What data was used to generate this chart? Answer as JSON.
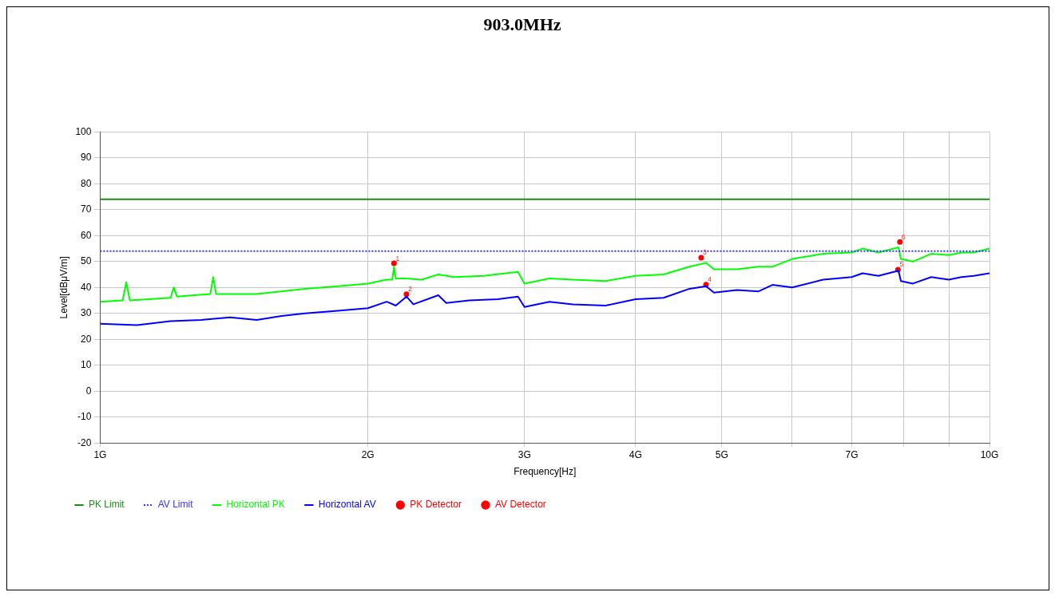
{
  "chart_data": {
    "type": "line",
    "title": "903.0MHz",
    "xlabel": "Frequency[Hz]",
    "ylabel": "Level[dBμV/m]",
    "log": "x",
    "grid": true,
    "legend": "bottom",
    "xlim": [
      1,
      10
    ],
    "xticks": [
      {
        "value": 1,
        "label": "1G"
      },
      {
        "value": 2,
        "label": "2G"
      },
      {
        "value": 3,
        "label": "3G"
      },
      {
        "value": 4,
        "label": "4G"
      },
      {
        "value": 5,
        "label": "5G"
      },
      {
        "value": 6,
        "label": null
      },
      {
        "value": 7,
        "label": "7G"
      },
      {
        "value": 8,
        "label": null
      },
      {
        "value": 9,
        "label": null
      },
      {
        "value": 10,
        "label": "10G"
      }
    ],
    "ylim": [
      -20,
      100
    ],
    "yticks": [
      -20,
      -10,
      0,
      10,
      20,
      30,
      40,
      50,
      60,
      70,
      80,
      90,
      100
    ],
    "annotations": [
      {
        "text": "1",
        "x": 2.14,
        "y": 49.3
      },
      {
        "text": "2",
        "x": 2.21,
        "y": 37.4
      },
      {
        "text": "3",
        "x": 4.74,
        "y": 51.5
      },
      {
        "text": "4",
        "x": 4.8,
        "y": 41.1
      },
      {
        "text": "5",
        "x": 7.89,
        "y": 46.9
      },
      {
        "text": "6",
        "x": 7.93,
        "y": 57.6
      }
    ],
    "series": [
      {
        "name": "PK Limit",
        "color": "#1a8c1a",
        "line_style": "solid",
        "marker": "none",
        "x": [
          1,
          10
        ],
        "values": [
          74,
          74
        ]
      },
      {
        "name": "AV Limit",
        "color": "#3333ff",
        "line_style": "dotted",
        "marker": "none",
        "x": [
          1,
          10
        ],
        "values": [
          54,
          54
        ]
      },
      {
        "name": "Horizontal PK",
        "color": "#00ff00",
        "line_style": "solid",
        "marker": "none",
        "x": [
          1.0,
          1.06,
          1.07,
          1.08,
          1.2,
          1.21,
          1.22,
          1.33,
          1.34,
          1.35,
          1.5,
          1.7,
          1.85,
          2.0,
          2.1,
          2.13,
          2.14,
          2.15,
          2.2,
          2.3,
          2.4,
          2.5,
          2.7,
          2.95,
          3.0,
          3.2,
          3.4,
          3.7,
          4.0,
          4.3,
          4.6,
          4.8,
          4.9,
          5.2,
          5.5,
          5.7,
          6.0,
          6.5,
          7.0,
          7.2,
          7.5,
          7.9,
          7.95,
          8.2,
          8.6,
          9.0,
          9.3,
          9.6,
          10.0
        ],
        "values": [
          34.5,
          35,
          42,
          35,
          36,
          40,
          36.5,
          37.5,
          44,
          37.5,
          37.5,
          39.5,
          40.5,
          41.5,
          43,
          43,
          48,
          43.5,
          43.5,
          43,
          45,
          44,
          44.5,
          46,
          41.5,
          43.5,
          43,
          42.5,
          44.5,
          45,
          48,
          49.5,
          47,
          47,
          48,
          48,
          51,
          53,
          53.5,
          55,
          53.5,
          55.5,
          51,
          50,
          53,
          52.5,
          53.5,
          53.5,
          55
        ]
      },
      {
        "name": "Horizontal AV",
        "color": "#0000ff",
        "line_style": "solid",
        "marker": "none",
        "x": [
          1.0,
          1.1,
          1.2,
          1.3,
          1.4,
          1.5,
          1.6,
          1.7,
          1.85,
          2.0,
          2.1,
          2.15,
          2.21,
          2.25,
          2.4,
          2.45,
          2.6,
          2.8,
          2.95,
          3.0,
          3.2,
          3.4,
          3.7,
          4.0,
          4.3,
          4.6,
          4.8,
          4.9,
          5.2,
          5.5,
          5.7,
          6.0,
          6.5,
          7.0,
          7.2,
          7.5,
          7.9,
          7.95,
          8.2,
          8.6,
          9.0,
          9.3,
          9.6,
          10.0
        ],
        "values": [
          26,
          25.5,
          27,
          27.5,
          28.5,
          27.5,
          29,
          30,
          31,
          32,
          34.5,
          33,
          36.5,
          33.5,
          37,
          34,
          35,
          35.5,
          36.5,
          32.5,
          34.5,
          33.5,
          33,
          35.5,
          36,
          39.5,
          40.5,
          38,
          39,
          38.5,
          41,
          40,
          43,
          44,
          45.5,
          44.5,
          46.5,
          42.5,
          41.5,
          44,
          43,
          44,
          44.5,
          45.5
        ]
      },
      {
        "name": "PK Detector",
        "type": "scatter",
        "color": "#ff0000",
        "marker": "circle",
        "x": [
          2.14,
          4.74,
          7.93
        ],
        "values": [
          49.3,
          51.5,
          57.6
        ]
      },
      {
        "name": "AV Detector",
        "type": "scatter",
        "color": "#ff0000",
        "marker": "circle",
        "x": [
          2.21,
          4.8,
          7.89
        ],
        "values": [
          37.4,
          41.1,
          46.9
        ]
      }
    ]
  }
}
